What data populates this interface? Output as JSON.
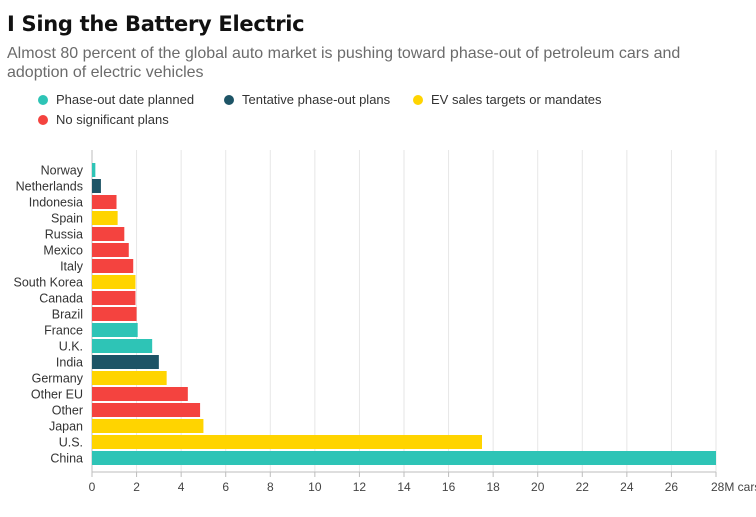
{
  "title": "I Sing the Battery Electric",
  "subtitle": "Almost 80 percent of the global auto market is pushing toward phase-out of petroleum cars and adoption of electric vehicles",
  "legend": [
    {
      "key": "phaseout",
      "label": "Phase-out date planned",
      "color": "#2ec4b6"
    },
    {
      "key": "tentative",
      "label": "Tentative phase-out plans",
      "color": "#1d5466"
    },
    {
      "key": "targets",
      "label": "EV sales targets or mandates",
      "color": "#ffd400"
    },
    {
      "key": "none",
      "label": "No significant plans",
      "color": "#f4433f"
    }
  ],
  "chart_data": {
    "type": "bar",
    "orientation": "horizontal",
    "title": "I Sing the Battery Electric",
    "subtitle": "Almost 80 percent of the global auto market is pushing toward phase-out of petroleum cars and adoption of electric vehicles",
    "unit_label": "M cars",
    "xlim": [
      0,
      28
    ],
    "ticks": [
      "0",
      "2",
      "4",
      "6",
      "8",
      "10",
      "12",
      "14",
      "16",
      "18",
      "20",
      "22",
      "24",
      "26",
      "28M cars"
    ],
    "tick_values": [
      0,
      2,
      4,
      6,
      8,
      10,
      12,
      14,
      16,
      18,
      20,
      22,
      24,
      26,
      28
    ],
    "grid": true,
    "categories": [
      "Norway",
      "Netherlands",
      "Indonesia",
      "Spain",
      "Russia",
      "Mexico",
      "Italy",
      "South Korea",
      "Canada",
      "Brazil",
      "France",
      "U.K.",
      "India",
      "Germany",
      "Other EU",
      "Other",
      "Japan",
      "U.S.",
      "China"
    ],
    "values": [
      0.15,
      0.4,
      1.1,
      1.15,
      1.45,
      1.65,
      1.85,
      1.95,
      1.95,
      2.0,
      2.05,
      2.7,
      3.0,
      3.35,
      4.3,
      4.85,
      5.0,
      17.5,
      28.0
    ],
    "groups": [
      "phaseout",
      "tentative",
      "none",
      "targets",
      "none",
      "none",
      "none",
      "targets",
      "none",
      "none",
      "phaseout",
      "phaseout",
      "tentative",
      "targets",
      "none",
      "none",
      "targets",
      "targets",
      "phaseout"
    ]
  }
}
